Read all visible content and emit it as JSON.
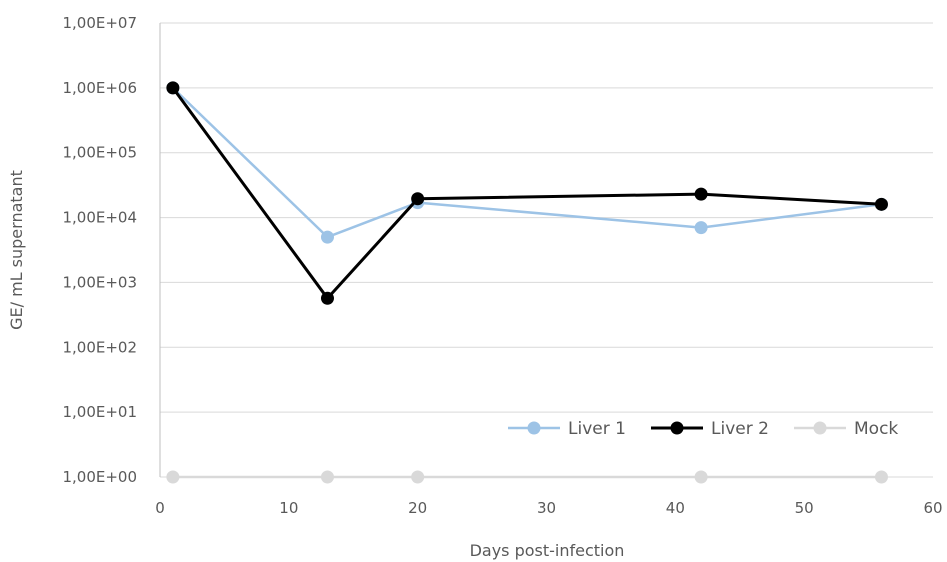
{
  "chart_data": {
    "type": "line",
    "xlabel": "Days post-infection",
    "ylabel": "GE/ mL supernatant",
    "xlim": [
      0,
      60
    ],
    "ylim": [
      1,
      10000000
    ],
    "y_scale": "log10",
    "x_ticks": [
      "0",
      "10",
      "20",
      "30",
      "40",
      "50",
      "60"
    ],
    "y_ticks": [
      "1,00E+00",
      "1,00E+01",
      "1,00E+02",
      "1,00E+03",
      "1,00E+04",
      "1,00E+05",
      "1,00E+06",
      "1,00E+07"
    ],
    "grid": "horizontal",
    "legend_position": "bottom-right",
    "series": [
      {
        "name": "Liver 1",
        "color": "#9dc3e6",
        "x": [
          1,
          13,
          20,
          42,
          56
        ],
        "y": [
          1000000,
          5000,
          17000,
          7000,
          16000
        ]
      },
      {
        "name": "Liver 2",
        "color": "#000000",
        "x": [
          1,
          13,
          20,
          42,
          56
        ],
        "y": [
          1000000,
          570,
          19500,
          23000,
          16000
        ]
      },
      {
        "name": "Mock",
        "color": "#d9d9d9",
        "x": [
          1,
          13,
          20,
          42,
          56
        ],
        "y": [
          1,
          1,
          1,
          1,
          1
        ]
      }
    ]
  }
}
